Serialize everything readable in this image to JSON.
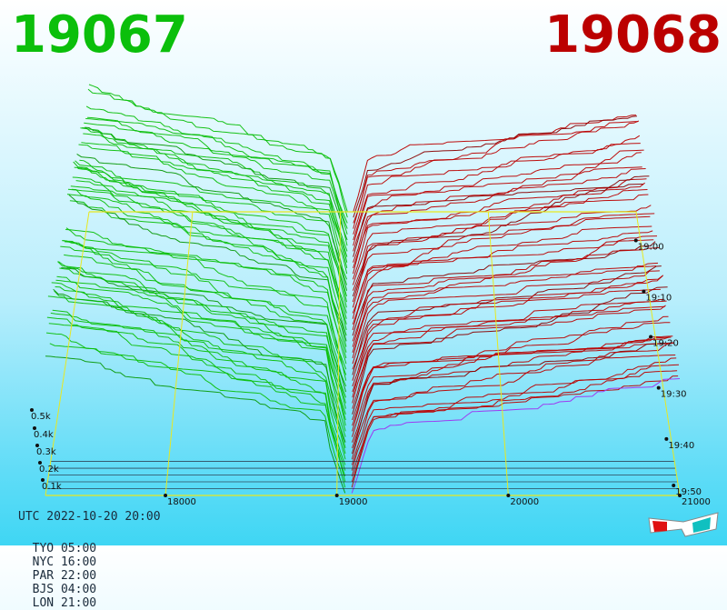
{
  "header": {
    "bid_label": "19067",
    "ask_label": "19068"
  },
  "footer": {
    "utc": "UTC 2022-10-20 20:00",
    "zones": [
      "TYO 05:00",
      "NYC 16:00",
      "PAR 22:00",
      "BJS 04:00",
      "LON 21:00"
    ]
  },
  "colors": {
    "bid": "#0bbf0b",
    "ask": "#bb0000",
    "axis": "#e8e820",
    "base_line": "#a030f0"
  },
  "icons": {
    "stereo": "3d-glasses-icon"
  },
  "chart_data": {
    "type": "3d-depth-surface",
    "price_axis": {
      "ticks": [
        18000,
        19000,
        20000,
        21000
      ],
      "range": [
        17300,
        21000
      ]
    },
    "volume_axis": {
      "ticks": [
        "0.1k",
        "0.2k",
        "0.3k",
        "0.4k",
        "0.5k"
      ],
      "values": [
        100,
        200,
        300,
        400,
        500
      ]
    },
    "time_axis": {
      "ticks": [
        "19:00",
        "19:10",
        "19:20",
        "19:30",
        "19:40",
        "19:50"
      ]
    },
    "mid_price": 19067.5,
    "bid_cumulative_volume_latest": [
      {
        "price": 17300,
        "volume": 520
      },
      {
        "price": 18000,
        "volume": 470
      },
      {
        "price": 18500,
        "volume": 430
      },
      {
        "price": 18900,
        "volume": 360
      },
      {
        "price": 19067,
        "volume": 0
      }
    ],
    "ask_cumulative_volume_latest": [
      {
        "price": 19068,
        "volume": 0
      },
      {
        "price": 19200,
        "volume": 240
      },
      {
        "price": 19600,
        "volume": 280
      },
      {
        "price": 20000,
        "volume": 300
      },
      {
        "price": 21000,
        "volume": 340
      }
    ]
  }
}
